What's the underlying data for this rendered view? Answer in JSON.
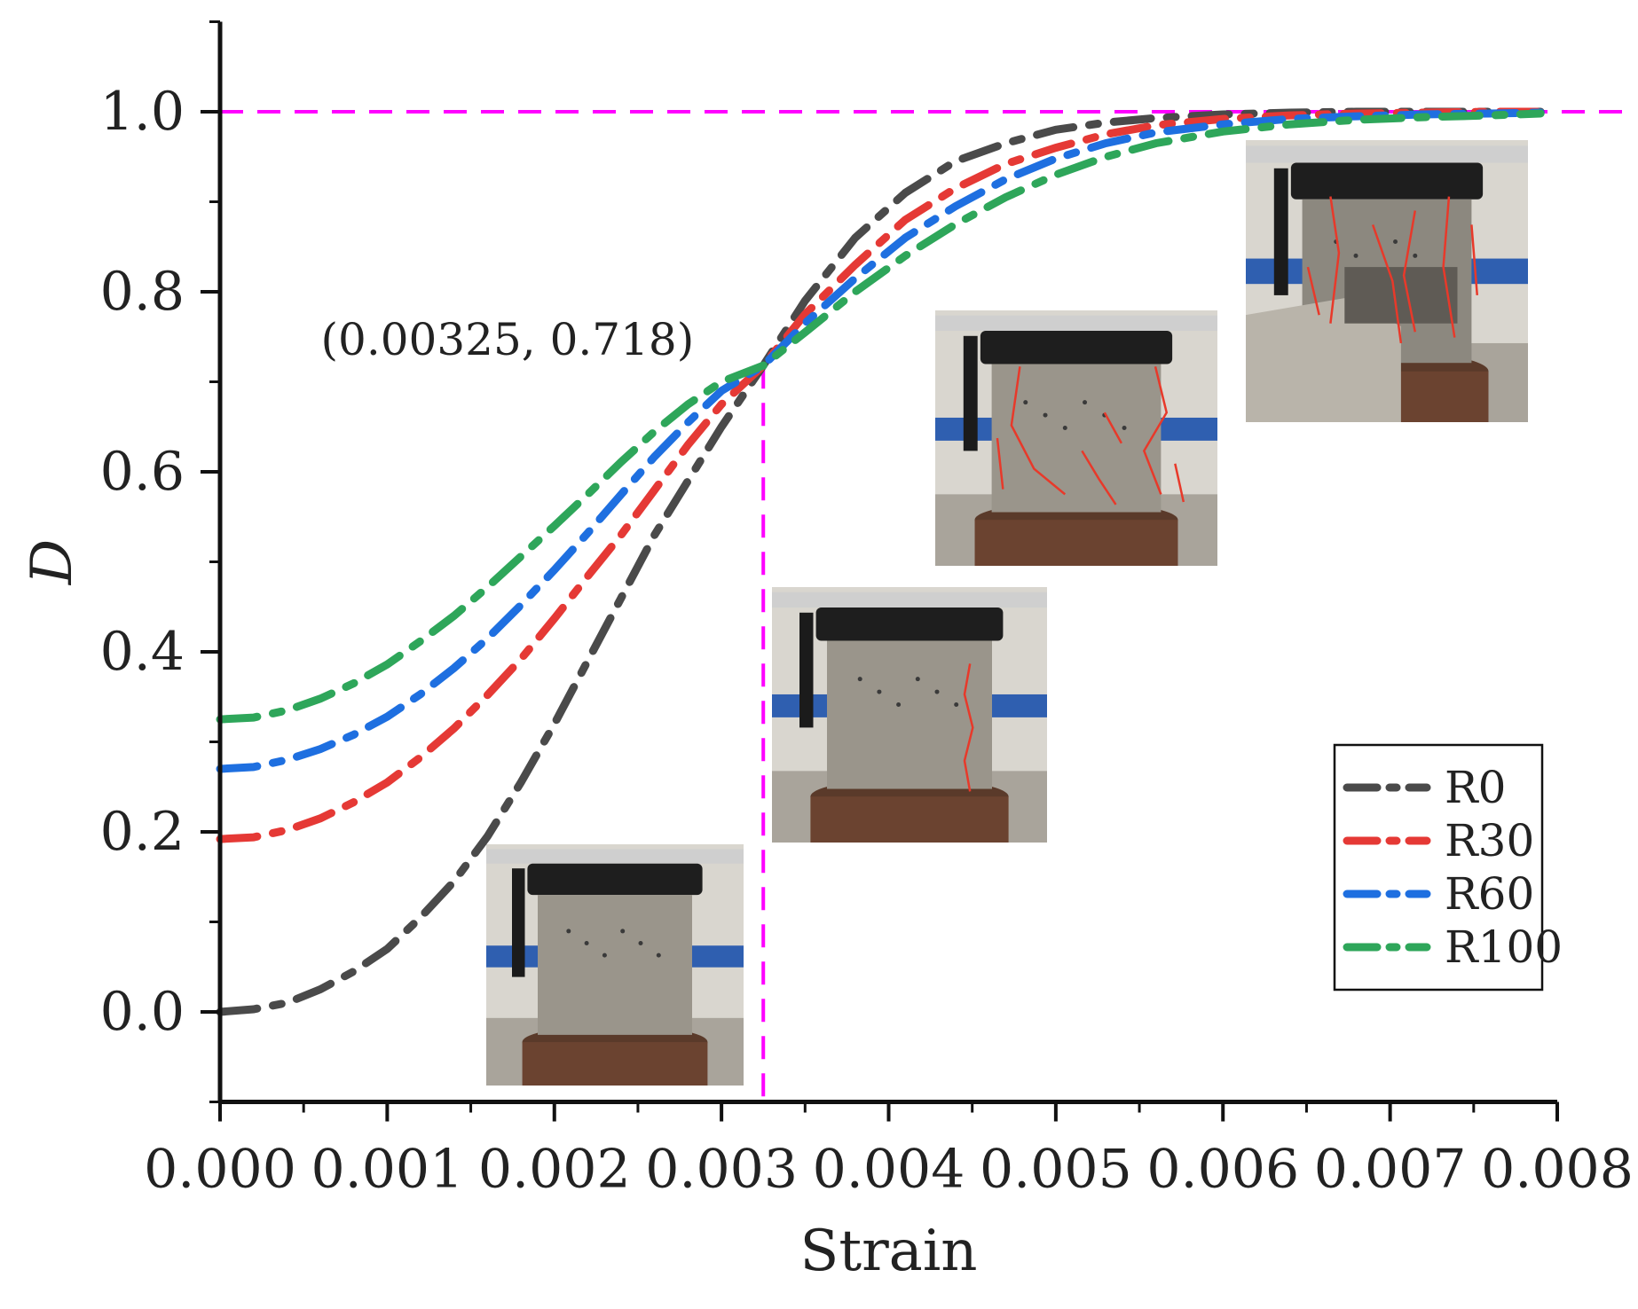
{
  "chart_data": {
    "type": "line",
    "title": "",
    "xlabel": "Strain",
    "ylabel": "D",
    "xlim": [
      0.0,
      0.008
    ],
    "ylim": [
      -0.1,
      1.1
    ],
    "x_ticks": [
      {
        "value": 0.0,
        "label": "0.000"
      },
      {
        "value": 0.001,
        "label": "0.001"
      },
      {
        "value": 0.002,
        "label": "0.002"
      },
      {
        "value": 0.003,
        "label": "0.003"
      },
      {
        "value": 0.004,
        "label": "0.004"
      },
      {
        "value": 0.005,
        "label": "0.005"
      },
      {
        "value": 0.006,
        "label": "0.006"
      },
      {
        "value": 0.007,
        "label": "0.007"
      },
      {
        "value": 0.008,
        "label": "0.008"
      }
    ],
    "y_ticks": [
      {
        "value": 0.0,
        "label": "0.0"
      },
      {
        "value": 0.2,
        "label": "0.2"
      },
      {
        "value": 0.4,
        "label": "0.4"
      },
      {
        "value": 0.6,
        "label": "0.6"
      },
      {
        "value": 0.8,
        "label": "0.8"
      },
      {
        "value": 1.0,
        "label": "1.0"
      }
    ],
    "grid": false,
    "legend_position": "bottom-right",
    "x": [
      0.0,
      0.0002,
      0.0004,
      0.0006,
      0.0008,
      0.001,
      0.0012,
      0.0014,
      0.0016,
      0.0018,
      0.002,
      0.0022,
      0.0024,
      0.0026,
      0.0028,
      0.003,
      0.00325,
      0.0035,
      0.0038,
      0.0041,
      0.0044,
      0.0047,
      0.005,
      0.0053,
      0.0056,
      0.006,
      0.0064,
      0.0068,
      0.0072,
      0.0076,
      0.0079
    ],
    "series": [
      {
        "name": "R0",
        "color": "#4a4a4a",
        "values": [
          0.0,
          0.003,
          0.01,
          0.025,
          0.045,
          0.07,
          0.105,
          0.145,
          0.195,
          0.255,
          0.32,
          0.39,
          0.46,
          0.53,
          0.59,
          0.65,
          0.718,
          0.79,
          0.86,
          0.91,
          0.945,
          0.965,
          0.98,
          0.988,
          0.993,
          0.997,
          0.999,
          1.0,
          1.0,
          1.0,
          1.0
        ]
      },
      {
        "name": "R30",
        "color": "#e53935",
        "values": [
          0.192,
          0.194,
          0.202,
          0.215,
          0.233,
          0.255,
          0.283,
          0.315,
          0.352,
          0.392,
          0.437,
          0.484,
          0.53,
          0.58,
          0.63,
          0.675,
          0.718,
          0.775,
          0.83,
          0.88,
          0.915,
          0.942,
          0.96,
          0.975,
          0.985,
          0.992,
          0.996,
          0.998,
          0.999,
          1.0,
          1.0
        ]
      },
      {
        "name": "R60",
        "color": "#1e6fe0",
        "values": [
          0.27,
          0.272,
          0.28,
          0.292,
          0.308,
          0.328,
          0.353,
          0.382,
          0.415,
          0.452,
          0.491,
          0.532,
          0.575,
          0.617,
          0.655,
          0.69,
          0.718,
          0.765,
          0.815,
          0.86,
          0.895,
          0.925,
          0.948,
          0.965,
          0.977,
          0.986,
          0.992,
          0.995,
          0.997,
          0.998,
          0.999
        ]
      },
      {
        "name": "R100",
        "color": "#2ea65a",
        "values": [
          0.325,
          0.327,
          0.335,
          0.348,
          0.365,
          0.386,
          0.412,
          0.44,
          0.472,
          0.506,
          0.54,
          0.575,
          0.611,
          0.645,
          0.675,
          0.7,
          0.718,
          0.755,
          0.8,
          0.84,
          0.875,
          0.905,
          0.93,
          0.95,
          0.965,
          0.978,
          0.986,
          0.991,
          0.994,
          0.996,
          0.998
        ]
      }
    ],
    "reference_lines": {
      "horizontal_y": 1.0,
      "vertical_x": 0.00325,
      "vertical_y_top": 0.718,
      "color": "#ff00ff"
    },
    "annotation": {
      "text": "(0.00325, 0.718)",
      "x": 0.00325,
      "y": 0.718
    },
    "legend": [
      "R0",
      "R30",
      "R60",
      "R100"
    ]
  },
  "photos": [
    {
      "name": "specimen-photo-intact",
      "cracks": 0
    },
    {
      "name": "specimen-photo-initial-crack",
      "cracks": 1
    },
    {
      "name": "specimen-photo-multiple-cracks",
      "cracks": 6
    },
    {
      "name": "specimen-photo-failure",
      "cracks": 6
    }
  ]
}
